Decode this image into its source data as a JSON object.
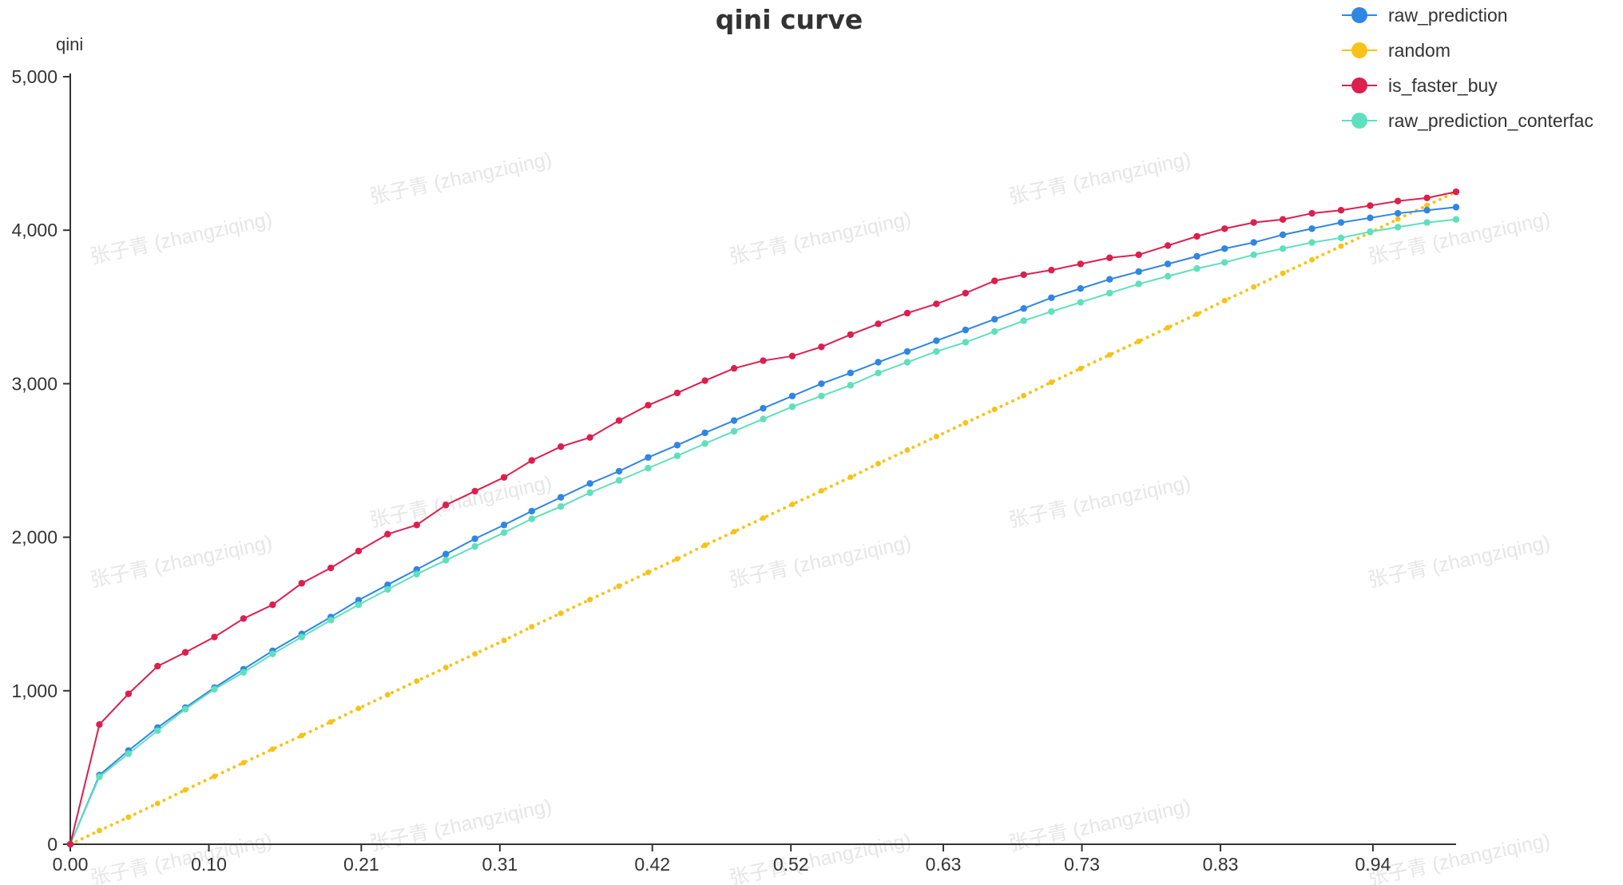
{
  "chart_data": {
    "type": "line",
    "title": "qini curve",
    "xlabel": "",
    "ylabel": "qini",
    "xlim": [
      0,
      1
    ],
    "ylim": [
      0,
      5000
    ],
    "x_ticks": [
      0.0,
      0.1,
      0.21,
      0.31,
      0.42,
      0.52,
      0.63,
      0.73,
      0.83,
      0.94
    ],
    "x_tick_labels": [
      "0.00",
      "0.10",
      "0.21",
      "0.31",
      "0.42",
      "0.52",
      "0.63",
      "0.73",
      "0.83",
      "0.94"
    ],
    "y_ticks": [
      0,
      1000,
      2000,
      3000,
      4000,
      5000
    ],
    "y_tick_labels": [
      "0",
      "1,000",
      "2,000",
      "3,000",
      "4,000",
      "5,000"
    ],
    "grid": false,
    "legend_position": "top-right",
    "watermark": "张子青 (zhangziqing)",
    "x": [
      0.0,
      0.021,
      0.042,
      0.063,
      0.083,
      0.104,
      0.125,
      0.146,
      0.167,
      0.188,
      0.208,
      0.229,
      0.25,
      0.271,
      0.292,
      0.313,
      0.333,
      0.354,
      0.375,
      0.396,
      0.417,
      0.438,
      0.458,
      0.479,
      0.5,
      0.521,
      0.542,
      0.563,
      0.583,
      0.604,
      0.625,
      0.646,
      0.667,
      0.688,
      0.708,
      0.729,
      0.75,
      0.771,
      0.792,
      0.813,
      0.833,
      0.854,
      0.875,
      0.896,
      0.917,
      0.938,
      0.958,
      0.979,
      1.0
    ],
    "series": [
      {
        "name": "raw_prediction",
        "color": "#2f86e3",
        "style": "solid",
        "values": [
          0,
          450,
          610,
          760,
          890,
          1020,
          1140,
          1260,
          1370,
          1480,
          1590,
          1690,
          1790,
          1890,
          1990,
          2080,
          2170,
          2260,
          2350,
          2430,
          2520,
          2600,
          2680,
          2760,
          2840,
          2920,
          3000,
          3070,
          3140,
          3210,
          3280,
          3350,
          3420,
          3490,
          3560,
          3620,
          3680,
          3730,
          3780,
          3830,
          3880,
          3920,
          3970,
          4010,
          4050,
          4080,
          4110,
          4130,
          4150
        ]
      },
      {
        "name": "random",
        "color": "#f7c31a",
        "style": "dotted",
        "values": [
          0,
          89,
          177,
          266,
          354,
          443,
          531,
          620,
          708,
          797,
          885,
          974,
          1063,
          1151,
          1240,
          1328,
          1417,
          1505,
          1594,
          1682,
          1771,
          1859,
          1948,
          2036,
          2125,
          2214,
          2302,
          2391,
          2479,
          2568,
          2656,
          2745,
          2833,
          2922,
          3010,
          3099,
          3188,
          3276,
          3365,
          3453,
          3542,
          3630,
          3719,
          3807,
          3896,
          3984,
          4073,
          4161,
          4250
        ]
      },
      {
        "name": "is_faster_buy",
        "color": "#dc1f4e",
        "style": "solid",
        "values": [
          0,
          780,
          980,
          1160,
          1250,
          1350,
          1470,
          1560,
          1700,
          1800,
          1910,
          2020,
          2080,
          2210,
          2300,
          2390,
          2500,
          2590,
          2650,
          2760,
          2860,
          2940,
          3020,
          3100,
          3150,
          3180,
          3240,
          3320,
          3390,
          3460,
          3520,
          3590,
          3670,
          3710,
          3740,
          3780,
          3820,
          3840,
          3900,
          3960,
          4010,
          4050,
          4070,
          4110,
          4130,
          4160,
          4190,
          4210,
          4250
        ]
      },
      {
        "name": "raw_prediction_conterfac",
        "color": "#5fe0bc",
        "style": "solid",
        "values": [
          0,
          440,
          590,
          740,
          880,
          1010,
          1120,
          1240,
          1350,
          1460,
          1560,
          1660,
          1760,
          1850,
          1940,
          2030,
          2120,
          2200,
          2290,
          2370,
          2450,
          2530,
          2610,
          2690,
          2770,
          2850,
          2920,
          2990,
          3070,
          3140,
          3210,
          3270,
          3340,
          3410,
          3470,
          3530,
          3590,
          3650,
          3700,
          3750,
          3790,
          3840,
          3880,
          3920,
          3950,
          3990,
          4020,
          4050,
          4070
        ]
      }
    ]
  }
}
